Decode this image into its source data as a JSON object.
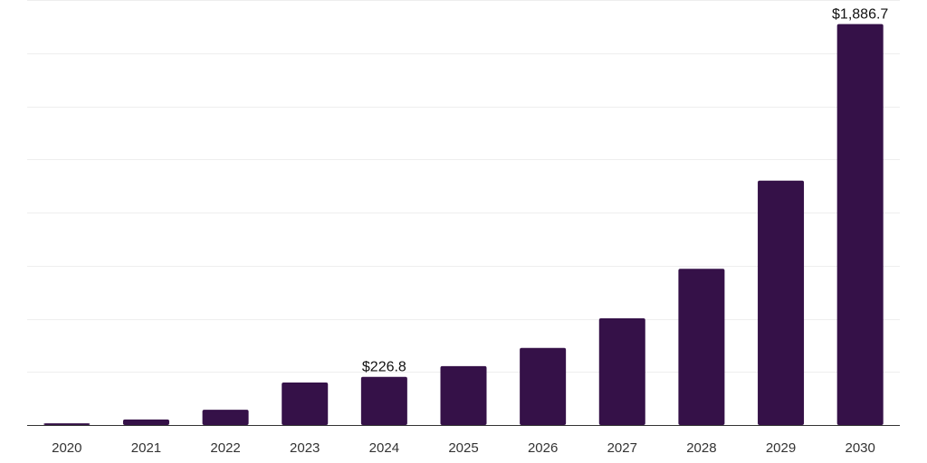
{
  "chart_data": {
    "type": "bar",
    "title": "",
    "xlabel": "",
    "ylabel": "",
    "categories": [
      "2020",
      "2021",
      "2022",
      "2023",
      "2024",
      "2025",
      "2026",
      "2027",
      "2028",
      "2029",
      "2030"
    ],
    "values": [
      8,
      26,
      72,
      200,
      226.8,
      277,
      363,
      502,
      735,
      1150,
      1886.7
    ],
    "data_labels": [
      {
        "category": "2024",
        "text": "$226.8"
      },
      {
        "category": "2030",
        "text": "$1,886.7"
      }
    ],
    "ylim": [
      0,
      2000
    ],
    "gridlines": true,
    "legend": "none",
    "bar_color": "#351148"
  }
}
